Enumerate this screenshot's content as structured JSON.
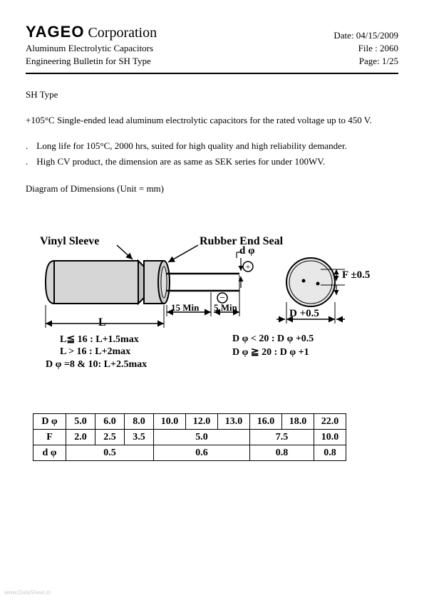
{
  "header": {
    "company_bold": "YAGEO",
    "company_rest": "Corporation",
    "date_label": "Date: 04/15/2009",
    "subtitle1": "Aluminum Electrolytic Capacitors",
    "subtitle2": "Engineering Bulletin for SH Type",
    "file_label": "File : 2060",
    "page_label": "Page: 1/25"
  },
  "body": {
    "type_title": "SH Type",
    "intro": "+105°C Single-ended lead aluminum electrolytic capacitors for the rated voltage up to 450 V.",
    "bullet1": "Long life for 105°C, 2000 hrs, suited for high quality and high reliability demander.",
    "bullet2": "High CV product, the dimension are as same as SEK series for under 100WV.",
    "diagram_title": "Diagram of Dimensions    (Unit = mm)"
  },
  "diagram": {
    "label_vinyl": "Vinyl  Sleeve",
    "label_rubber": "Rubber  End  Seal",
    "label_dphi": "d φ",
    "label_L": "L",
    "label_15min": "15 Min",
    "label_5min": "5 Min",
    "label_F": "F ±0.5",
    "label_D": "D +0.5",
    "note1": "L≦ 16 :    L+1.5max",
    "note2": "L > 16 :    L+2max",
    "note3": "D φ =8 & 10:   L+2.5max",
    "note4": "D φ < 20 : D φ +0.5",
    "note5": "D φ ≧ 20 : D φ +1",
    "body_fill": "#d6d6d6",
    "sleeve_fill": "#cfcfcf",
    "stroke": "#000000",
    "circle_fill": "#e8e8e8"
  },
  "table": {
    "row_labels": [
      "D  φ",
      "F",
      "d  φ"
    ],
    "columns": [
      "5.0",
      "6.0",
      "8.0",
      "10.0",
      "12.0",
      "13.0",
      "16.0",
      "18.0",
      "22.0"
    ],
    "F_values": [
      {
        "span": 1,
        "text": "2.0"
      },
      {
        "span": 1,
        "text": "2.5"
      },
      {
        "span": 1,
        "text": "3.5"
      },
      {
        "span": 3,
        "text": "5.0"
      },
      {
        "span": 2,
        "text": "7.5"
      },
      {
        "span": 1,
        "text": "10.0"
      }
    ],
    "d_values": [
      {
        "span": 3,
        "text": "0.5"
      },
      {
        "span": 3,
        "text": "0.6"
      },
      {
        "span": 2,
        "text": "0.8"
      },
      {
        "span": 1,
        "text": "0.8"
      }
    ]
  },
  "watermark": "www.DataSheet.in"
}
